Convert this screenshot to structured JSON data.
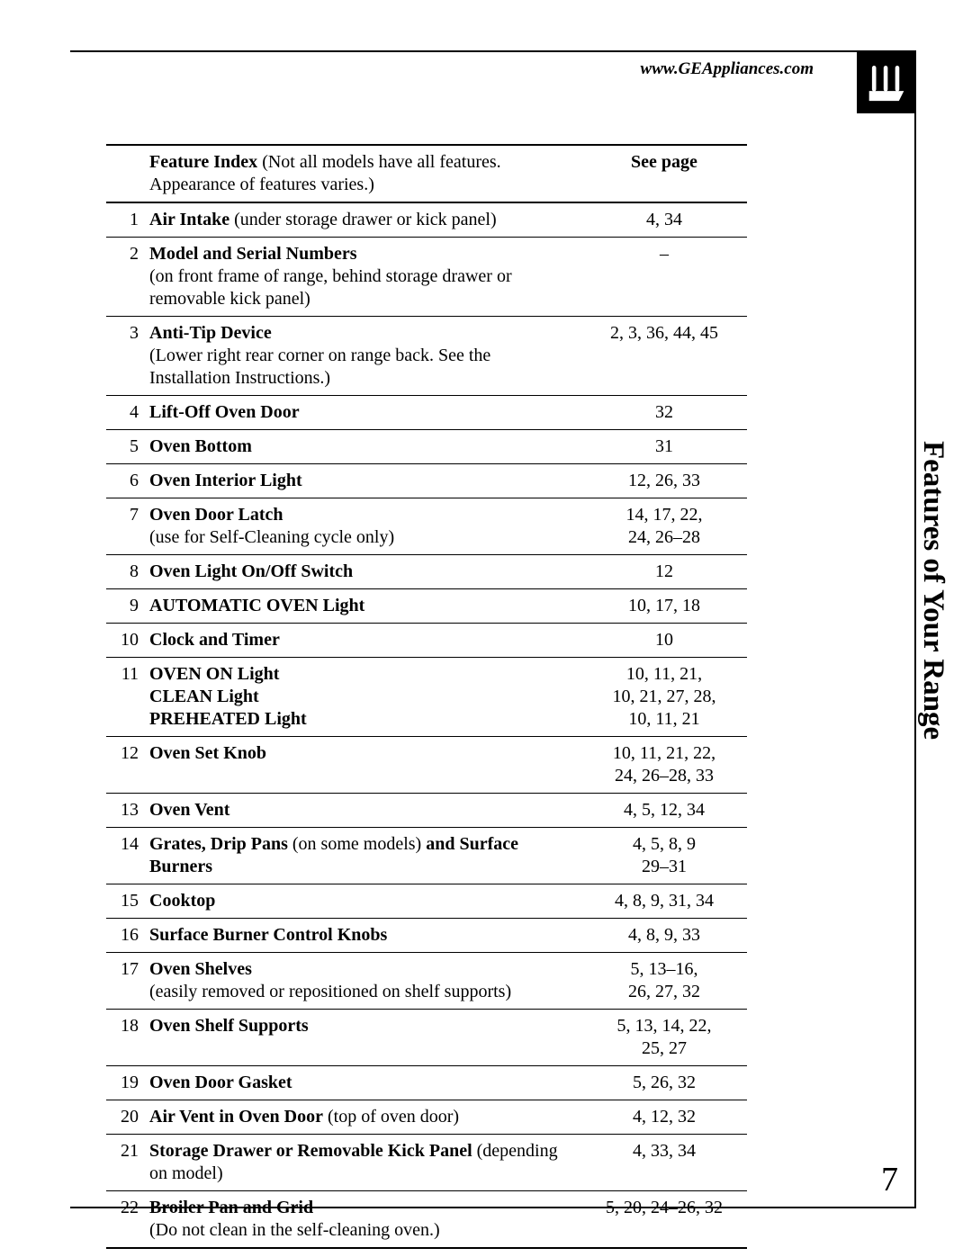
{
  "header": {
    "url": "www.GEAppliances.com"
  },
  "side_title": "Features of Your Range",
  "page_number": "7",
  "table": {
    "header": {
      "feature_index_label": "Feature Index",
      "feature_index_note": " (Not all models have all features. Appearance of features varies.)",
      "see_page": "See page"
    },
    "rows": [
      {
        "n": "1",
        "bold": "Air Intake",
        "sub": " (under storage drawer or kick panel)",
        "pages": "4, 34"
      },
      {
        "n": "2",
        "bold": "Model and Serial Numbers",
        "sub_line": "(on front frame of range, behind storage drawer or removable kick panel)",
        "pages": "–"
      },
      {
        "n": "3",
        "bold": "Anti-Tip Device",
        "sub_line": "(Lower right rear corner on range back. See the Installation Instructions.)",
        "pages": "2, 3, 36, 44, 45"
      },
      {
        "n": "4",
        "bold": "Lift-Off Oven Door",
        "pages": "32"
      },
      {
        "n": "5",
        "bold": "Oven Bottom",
        "pages": "31"
      },
      {
        "n": "6",
        "bold": "Oven Interior Light",
        "pages": "12, 26, 33"
      },
      {
        "n": "7",
        "bold": "Oven Door Latch",
        "sub_line": "(use for Self-Cleaning cycle only)",
        "pages": "14, 17, 22,\n24, 26–28"
      },
      {
        "n": "8",
        "bold": "Oven Light On/Off Switch",
        "pages": "12"
      },
      {
        "n": "9",
        "bold": "AUTOMATIC OVEN Light",
        "pages": "10, 17, 18"
      },
      {
        "n": "10",
        "bold": "Clock and Timer",
        "pages": "10"
      },
      {
        "n": "11",
        "bold_lines": [
          "OVEN ON Light",
          "CLEAN Light",
          "PREHEATED Light"
        ],
        "pages": "10, 11, 21,\n10, 21, 27, 28,\n10, 11, 21"
      },
      {
        "n": "12",
        "bold": "Oven Set Knob",
        "pages": "10, 11, 21, 22,\n24, 26–28, 33"
      },
      {
        "n": "13",
        "bold": "Oven Vent",
        "pages": "4, 5, 12, 34"
      },
      {
        "n": "14",
        "bold": "Grates, Drip Pans",
        "sub": " (on some models) ",
        "bold2": "and Surface Burners",
        "pages": "4, 5, 8, 9\n29–31"
      },
      {
        "n": "15",
        "bold": "Cooktop",
        "pages": "4, 8, 9, 31, 34"
      },
      {
        "n": "16",
        "bold": "Surface Burner Control Knobs",
        "pages": "4, 8, 9, 33"
      },
      {
        "n": "17",
        "bold": "Oven Shelves",
        "sub_line": "(easily removed or repositioned on shelf supports)",
        "pages": "5, 13–16,\n26, 27, 32"
      },
      {
        "n": "18",
        "bold": "Oven Shelf Supports",
        "pages": "5, 13, 14, 22,\n25, 27"
      },
      {
        "n": "19",
        "bold": "Oven Door Gasket",
        "pages": "5, 26, 32"
      },
      {
        "n": "20",
        "bold": "Air Vent in Oven Door",
        "sub": " (top of oven door)",
        "pages": "4, 12, 32"
      },
      {
        "n": "21",
        "bold": "Storage Drawer or Removable Kick Panel",
        "sub": " (depending on model)",
        "pages": "4, 33, 34"
      },
      {
        "n": "22",
        "bold": "Broiler Pan and Grid",
        "sub_line": "(Do not clean in the self-cleaning oven.)",
        "pages": "5, 20, 24–26, 32"
      }
    ]
  }
}
